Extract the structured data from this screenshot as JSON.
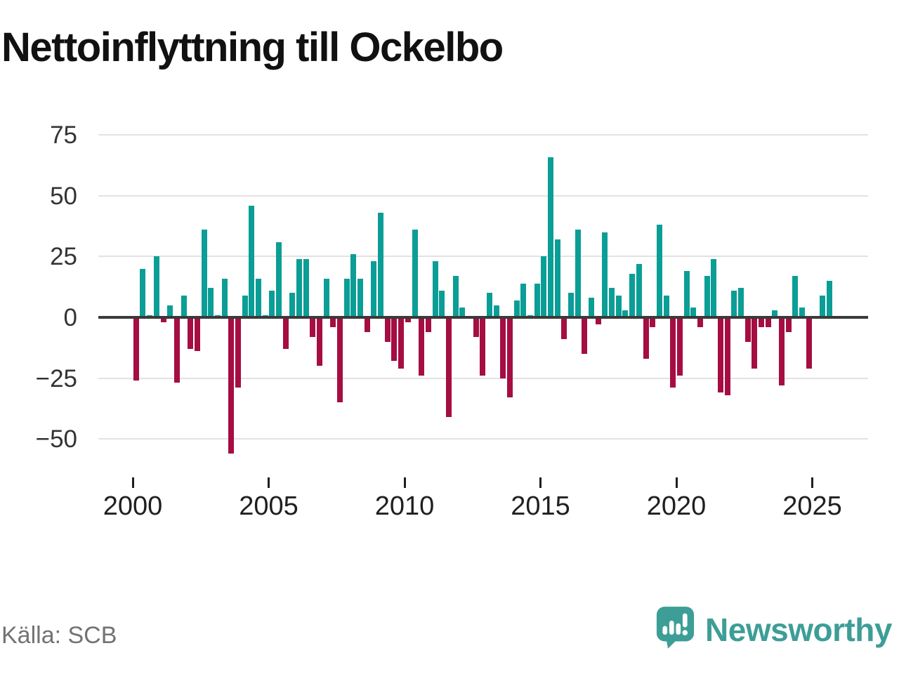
{
  "title": "Nettoinflyttning till Ockelbo",
  "source": "Källa: SCB",
  "brand": {
    "name": "Newsworthy",
    "color": "#3d9e97"
  },
  "colors": {
    "positive": "#0b9e96",
    "negative": "#a50d43",
    "axis": "#3a3a3a",
    "grid": "#e3e3e3",
    "y_label": "#333333",
    "x_label": "#1f1f1f",
    "title": "#111111",
    "source_text": "#737373",
    "background": "#ffffff"
  },
  "y_axis": {
    "ticks": [
      75,
      50,
      25,
      0,
      -25,
      -50
    ],
    "tick_labels": [
      "75",
      "50",
      "25",
      "0",
      "−25",
      "−50"
    ]
  },
  "x_axis": {
    "ticks": [
      2000,
      2005,
      2010,
      2015,
      2020,
      2025
    ],
    "tick_labels": [
      "2000",
      "2005",
      "2010",
      "2015",
      "2020",
      "2025"
    ]
  },
  "chart_data": {
    "type": "bar",
    "title": "Nettoinflyttning till Ockelbo",
    "frequency": "quarterly",
    "xlabel": "",
    "ylabel": "",
    "ylim": [
      -62,
      80
    ],
    "grid": true,
    "legend": false,
    "positive_color": "#0b9e96",
    "negative_color": "#a50d43",
    "points": [
      [
        "2000Q1",
        -26
      ],
      [
        "2000Q2",
        20
      ],
      [
        "2000Q3",
        1
      ],
      [
        "2000Q4",
        25
      ],
      [
        "2001Q1",
        -2
      ],
      [
        "2001Q2",
        5
      ],
      [
        "2001Q3",
        -27
      ],
      [
        "2001Q4",
        9
      ],
      [
        "2002Q1",
        -13
      ],
      [
        "2002Q2",
        -14
      ],
      [
        "2002Q3",
        36
      ],
      [
        "2002Q4",
        12
      ],
      [
        "2003Q1",
        1
      ],
      [
        "2003Q2",
        16
      ],
      [
        "2003Q3",
        -56
      ],
      [
        "2003Q4",
        -29
      ],
      [
        "2004Q1",
        9
      ],
      [
        "2004Q2",
        46
      ],
      [
        "2004Q3",
        16
      ],
      [
        "2004Q4",
        1
      ],
      [
        "2005Q1",
        11
      ],
      [
        "2005Q2",
        31
      ],
      [
        "2005Q3",
        -13
      ],
      [
        "2005Q4",
        10
      ],
      [
        "2006Q1",
        24
      ],
      [
        "2006Q2",
        24
      ],
      [
        "2006Q3",
        -8
      ],
      [
        "2006Q4",
        -20
      ],
      [
        "2007Q1",
        16
      ],
      [
        "2007Q2",
        -4
      ],
      [
        "2007Q3",
        -35
      ],
      [
        "2007Q4",
        16
      ],
      [
        "2008Q1",
        26
      ],
      [
        "2008Q2",
        16
      ],
      [
        "2008Q3",
        -6
      ],
      [
        "2008Q4",
        23
      ],
      [
        "2009Q1",
        43
      ],
      [
        "2009Q2",
        -10
      ],
      [
        "2009Q3",
        -18
      ],
      [
        "2009Q4",
        -21
      ],
      [
        "2010Q1",
        -2
      ],
      [
        "2010Q2",
        36
      ],
      [
        "2010Q3",
        -24
      ],
      [
        "2010Q4",
        -6
      ],
      [
        "2011Q1",
        23
      ],
      [
        "2011Q2",
        11
      ],
      [
        "2011Q3",
        -41
      ],
      [
        "2011Q4",
        17
      ],
      [
        "2012Q1",
        4
      ],
      [
        "2012Q2",
        0
      ],
      [
        "2012Q3",
        -8
      ],
      [
        "2012Q4",
        -24
      ],
      [
        "2013Q1",
        10
      ],
      [
        "2013Q2",
        5
      ],
      [
        "2013Q3",
        -25
      ],
      [
        "2013Q4",
        -33
      ],
      [
        "2014Q1",
        7
      ],
      [
        "2014Q2",
        14
      ],
      [
        "2014Q3",
        1
      ],
      [
        "2014Q4",
        14
      ],
      [
        "2015Q1",
        25
      ],
      [
        "2015Q2",
        66
      ],
      [
        "2015Q3",
        32
      ],
      [
        "2015Q4",
        -9
      ],
      [
        "2016Q1",
        10
      ],
      [
        "2016Q2",
        36
      ],
      [
        "2016Q3",
        -15
      ],
      [
        "2016Q4",
        8
      ],
      [
        "2017Q1",
        -3
      ],
      [
        "2017Q2",
        35
      ],
      [
        "2017Q3",
        12
      ],
      [
        "2017Q4",
        9
      ],
      [
        "2018Q1",
        3
      ],
      [
        "2018Q2",
        18
      ],
      [
        "2018Q3",
        22
      ],
      [
        "2018Q4",
        -17
      ],
      [
        "2019Q1",
        -4
      ],
      [
        "2019Q2",
        38
      ],
      [
        "2019Q3",
        9
      ],
      [
        "2019Q4",
        -29
      ],
      [
        "2020Q1",
        -24
      ],
      [
        "2020Q2",
        19
      ],
      [
        "2020Q3",
        4
      ],
      [
        "2020Q4",
        -4
      ],
      [
        "2021Q1",
        17
      ],
      [
        "2021Q2",
        24
      ],
      [
        "2021Q3",
        -31
      ],
      [
        "2021Q4",
        -32
      ],
      [
        "2022Q1",
        11
      ],
      [
        "2022Q2",
        12
      ],
      [
        "2022Q3",
        -10
      ],
      [
        "2022Q4",
        -21
      ],
      [
        "2023Q1",
        -4
      ],
      [
        "2023Q2",
        -4
      ],
      [
        "2023Q3",
        3
      ],
      [
        "2023Q4",
        -28
      ],
      [
        "2024Q1",
        -6
      ],
      [
        "2024Q2",
        17
      ],
      [
        "2024Q3",
        4
      ],
      [
        "2024Q4",
        -21
      ],
      [
        "2025Q1",
        0
      ],
      [
        "2025Q2",
        9
      ],
      [
        "2025Q3",
        15
      ]
    ]
  }
}
